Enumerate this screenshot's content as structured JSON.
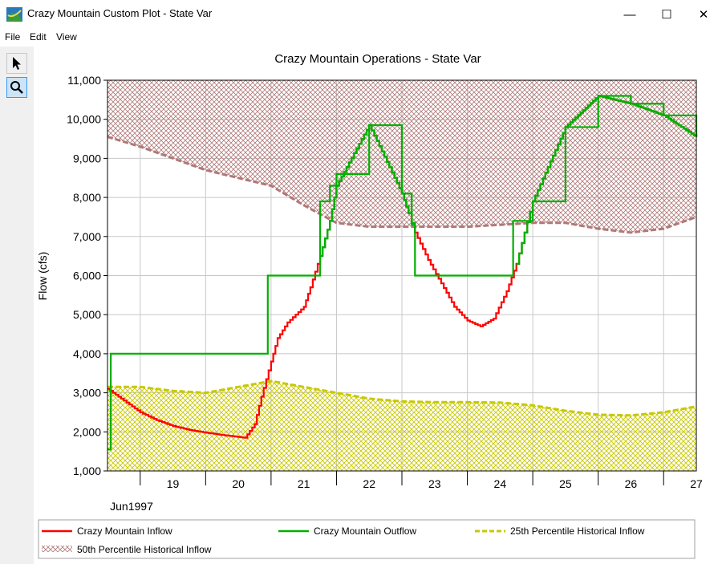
{
  "window": {
    "title": "Crazy Mountain Custom Plot - State Var",
    "minimize_glyph": "—",
    "maximize_glyph": "☐",
    "close_glyph": "✕"
  },
  "menu": [
    "File",
    "Edit",
    "View"
  ],
  "tools": {
    "pointer_icon": "pointer-arrow-icon",
    "zoom_icon": "magnifier-icon"
  },
  "chart_data": {
    "type": "line",
    "title": "Crazy Mountain Operations - State Var",
    "ylabel": "Flow (cfs)",
    "xlabel": "",
    "ylim": [
      1000,
      11000
    ],
    "yticks": [
      1000,
      2000,
      3000,
      4000,
      5000,
      6000,
      7000,
      8000,
      9000,
      10000,
      11000
    ],
    "ytick_labels": [
      "1,000",
      "2,000",
      "3,000",
      "4,000",
      "5,000",
      "6,000",
      "7,000",
      "8,000",
      "9,000",
      "10,000",
      "11,000"
    ],
    "xlim": [
      18.5,
      27.5
    ],
    "x_day_labels": [
      "19",
      "20",
      "21",
      "22",
      "23",
      "24",
      "25",
      "26",
      "27"
    ],
    "x_month_label": "Jun1997",
    "grid": true,
    "series": [
      {
        "name": "Crazy Mountain Inflow",
        "color": "#ff0000",
        "style": "step",
        "x": [
          18.5,
          18.75,
          19.0,
          19.25,
          19.5,
          19.75,
          20.0,
          20.25,
          20.5,
          20.6,
          20.75,
          20.85,
          21.0,
          21.1,
          21.25,
          21.5,
          21.6,
          21.75,
          21.9,
          22.0,
          22.5,
          23.0,
          23.1,
          23.2,
          23.4,
          23.6,
          23.8,
          24.0,
          24.2,
          24.4,
          24.6,
          24.75,
          25.0,
          25.5,
          26.0,
          26.5,
          27.0,
          27.5
        ],
        "y": [
          3100,
          2800,
          2500,
          2300,
          2150,
          2050,
          1980,
          1920,
          1870,
          1850,
          2200,
          2900,
          3800,
          4400,
          4800,
          5200,
          5700,
          6500,
          7400,
          8300,
          9850,
          8100,
          7600,
          7100,
          6400,
          5800,
          5200,
          4850,
          4700,
          4900,
          5600,
          6300,
          7900,
          9800,
          10600,
          10400,
          10100,
          9550
        ]
      },
      {
        "name": "Crazy Mountain Outflow",
        "color": "#00b000",
        "style": "step",
        "x": [
          18.5,
          18.55,
          19.0,
          20.5,
          20.95,
          21.5,
          21.75,
          21.9,
          22.0,
          22.5,
          23.0,
          23.15,
          23.2,
          24.0,
          24.65,
          24.7,
          25.0,
          25.5,
          26.0,
          26.5,
          27.0,
          27.5
        ],
        "y": [
          1550,
          4000,
          4000,
          4000,
          6000,
          6000,
          7900,
          8300,
          8600,
          9850,
          8100,
          7300,
          6000,
          6000,
          6000,
          7400,
          7900,
          9800,
          10600,
          10400,
          10100,
          9550
        ]
      },
      {
        "name": "25th Percentile Historical Inflow",
        "color": "#c8c800",
        "style": "dashed",
        "hatch": "#c8c800",
        "x": [
          18.5,
          19.0,
          19.5,
          20.0,
          20.5,
          21.0,
          21.5,
          22.0,
          22.5,
          23.0,
          23.5,
          24.0,
          24.5,
          25.0,
          25.5,
          26.0,
          26.5,
          27.0,
          27.5
        ],
        "y": [
          3150,
          3150,
          3050,
          3000,
          3150,
          3300,
          3150,
          3000,
          2850,
          2780,
          2760,
          2760,
          2750,
          2680,
          2540,
          2440,
          2420,
          2500,
          2650
        ]
      },
      {
        "name": "50th Percentile Historical Inflow",
        "color": "#b07878",
        "style": "dashed",
        "hatch": "#b07878",
        "x": [
          18.5,
          19.0,
          19.5,
          20.0,
          20.5,
          21.0,
          21.5,
          22.0,
          22.5,
          23.0,
          23.5,
          24.0,
          24.5,
          25.0,
          25.5,
          26.0,
          26.5,
          27.0,
          27.5
        ],
        "y": [
          9550,
          9300,
          9000,
          8700,
          8500,
          8300,
          7800,
          7350,
          7250,
          7250,
          7250,
          7250,
          7300,
          7350,
          7350,
          7200,
          7100,
          7200,
          7500
        ]
      }
    ],
    "legend_position": "bottom"
  }
}
